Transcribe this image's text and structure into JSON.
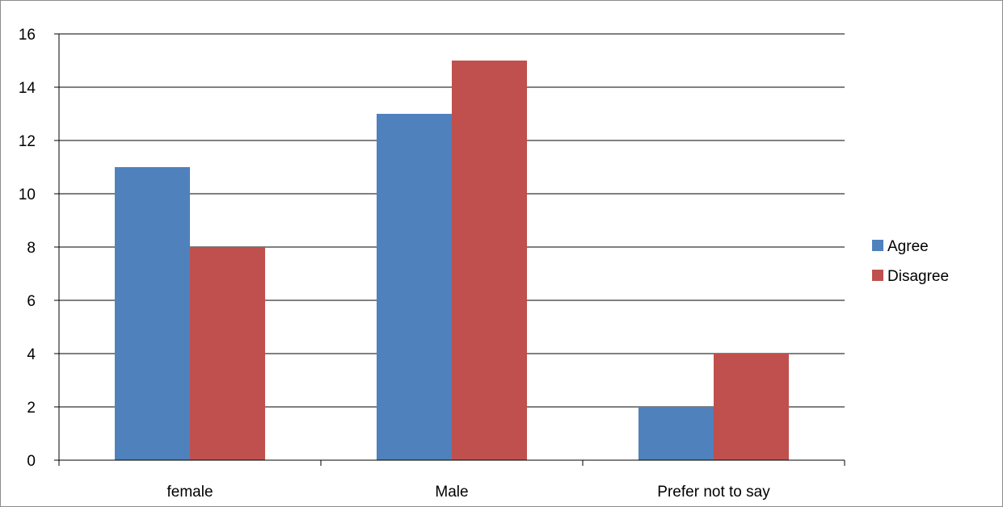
{
  "chart_data": {
    "type": "bar",
    "title": "",
    "xlabel": "",
    "ylabel": "",
    "categories": [
      "female",
      "Male",
      "Prefer not to say"
    ],
    "series": [
      {
        "name": "Agree",
        "values": [
          11,
          13,
          2
        ],
        "color": "#4f81bd"
      },
      {
        "name": "Disagree",
        "values": [
          8,
          15,
          4
        ],
        "color": "#c0504d"
      }
    ],
    "ylim": [
      0,
      16
    ],
    "yticks": [
      "0",
      "2",
      "4",
      "6",
      "8",
      "10",
      "12",
      "14",
      "16"
    ],
    "grid": true,
    "legend_position": "right"
  }
}
